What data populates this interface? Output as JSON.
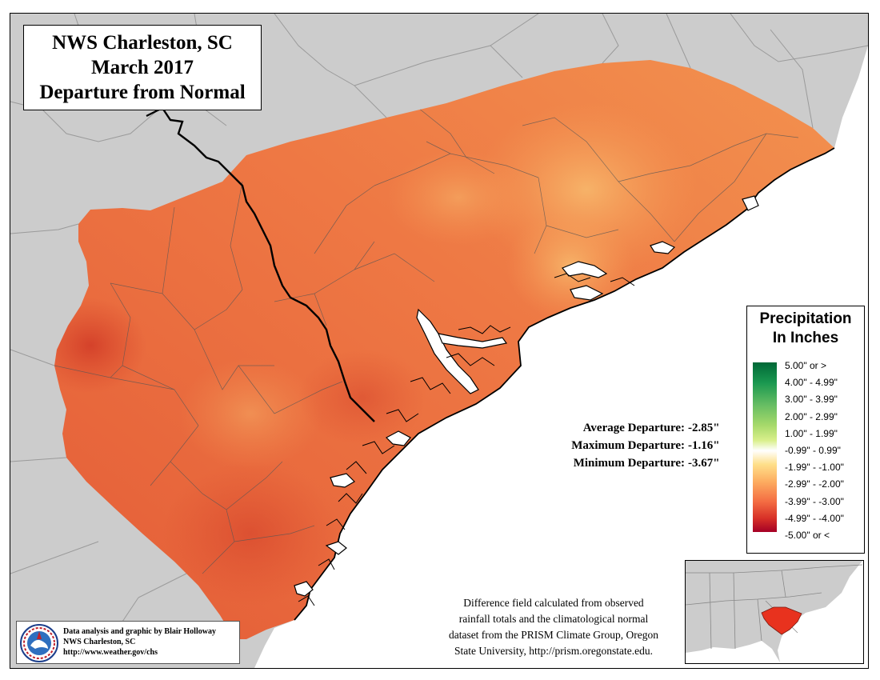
{
  "title": {
    "line1": "NWS Charleston, SC",
    "line2": "March 2017",
    "line3": "Departure from Normal"
  },
  "legend": {
    "title_line1": "Precipitation",
    "title_line2": "In Inches",
    "items": [
      {
        "label": "5.00\" or >",
        "color": "#006837"
      },
      {
        "label": "4.00\" - 4.99\"",
        "color": "#1a9850"
      },
      {
        "label": "3.00\" - 3.99\"",
        "color": "#66bd63"
      },
      {
        "label": "2.00\" - 2.99\"",
        "color": "#a6d96a"
      },
      {
        "label": "1.00\" - 1.99\"",
        "color": "#d9ef8b"
      },
      {
        "label": "-0.99\" - 0.99\"",
        "color": "#ffffff"
      },
      {
        "label": "-1.99\" - -1.00\"",
        "color": "#fee08b"
      },
      {
        "label": "-2.99\" - -2.00\"",
        "color": "#fdae61"
      },
      {
        "label": "-3.99\" - -3.00\"",
        "color": "#f46d43"
      },
      {
        "label": "-4.99\" - -4.00\"",
        "color": "#d73027"
      },
      {
        "label": "-5.00\" or <",
        "color": "#a50026"
      }
    ]
  },
  "stats": {
    "average_label": "Average Departure:",
    "average_value": "-2.85\"",
    "maximum_label": "Maximum Departure:",
    "maximum_value": "-1.16\"",
    "minimum_label": "Minimum Departure:",
    "minimum_value": "-3.67\""
  },
  "note": {
    "line1": "Difference field calculated from observed",
    "line2": "rainfall totals and the climatological normal",
    "line3": "dataset from the PRISM Climate Group, Oregon",
    "line4": "State University, http://prism.oregonstate.edu."
  },
  "credit": {
    "line1": "Data analysis and graphic by Blair Holloway",
    "line2": "NWS Charleston, SC",
    "line3": "http://www.weather.gov/chs",
    "logo_text": "NATIONAL WEATHER SERVICE"
  },
  "colors": {
    "land_gray": "#cccccc",
    "boundary_gray": "#9a9a9a",
    "ocean": "#ffffff",
    "region_main": "#ea6a3c",
    "region_light": "#f59a55",
    "region_dark": "#d9482c",
    "inset_highlight": "#e8321e"
  }
}
